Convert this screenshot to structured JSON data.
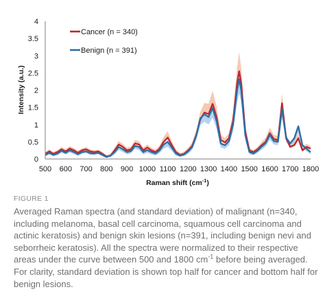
{
  "chart_data": {
    "type": "line",
    "xlabel": "Raman shift (cm",
    "xlabel_sup": "-1",
    "xlabel_tail": ")",
    "ylabel": "Intensity (a.u.)",
    "xlim": [
      500,
      1800
    ],
    "ylim": [
      0,
      4
    ],
    "xticks": [
      500,
      600,
      700,
      800,
      900,
      1000,
      1100,
      1200,
      1300,
      1400,
      1500,
      1600,
      1700,
      1800
    ],
    "yticks": [
      "0",
      "0.5",
      "1",
      "1.5",
      "2",
      "2.5",
      "3",
      "3.5",
      "4"
    ],
    "ytick_values": [
      0,
      0.5,
      1,
      1.5,
      2,
      2.5,
      3,
      3.5,
      4
    ],
    "grid": false,
    "legend_position": "top-left",
    "x": [
      500,
      520,
      540,
      560,
      580,
      600,
      620,
      640,
      660,
      680,
      700,
      720,
      740,
      760,
      780,
      800,
      820,
      840,
      860,
      880,
      900,
      920,
      940,
      960,
      980,
      1000,
      1020,
      1040,
      1060,
      1080,
      1100,
      1120,
      1140,
      1160,
      1180,
      1200,
      1220,
      1240,
      1260,
      1280,
      1300,
      1320,
      1340,
      1360,
      1380,
      1400,
      1420,
      1440,
      1450,
      1460,
      1480,
      1500,
      1520,
      1540,
      1560,
      1580,
      1600,
      1620,
      1640,
      1660,
      1680,
      1700,
      1720,
      1740,
      1760,
      1780,
      1800
    ],
    "series": [
      {
        "name": "Cancer (n = 340)",
        "color": "#c0272d",
        "band_color": "#f3c0a4",
        "band": "upper",
        "values": [
          0.15,
          0.22,
          0.15,
          0.2,
          0.28,
          0.22,
          0.3,
          0.25,
          0.18,
          0.25,
          0.28,
          0.22,
          0.2,
          0.22,
          0.15,
          0.07,
          0.1,
          0.25,
          0.42,
          0.35,
          0.25,
          0.28,
          0.45,
          0.42,
          0.25,
          0.33,
          0.25,
          0.2,
          0.3,
          0.5,
          0.62,
          0.4,
          0.2,
          0.12,
          0.15,
          0.25,
          0.38,
          0.7,
          1.15,
          1.35,
          1.3,
          1.6,
          1.2,
          0.55,
          0.48,
          0.6,
          1.1,
          2.2,
          2.55,
          2.2,
          0.8,
          0.25,
          0.2,
          0.28,
          0.4,
          0.5,
          0.75,
          0.58,
          0.55,
          1.62,
          0.6,
          0.35,
          0.4,
          0.6,
          0.25,
          0.35,
          0.3
        ],
        "sd": [
          0.05,
          0.06,
          0.05,
          0.06,
          0.07,
          0.06,
          0.07,
          0.07,
          0.06,
          0.06,
          0.06,
          0.06,
          0.05,
          0.05,
          0.05,
          0.04,
          0.05,
          0.08,
          0.1,
          0.09,
          0.08,
          0.08,
          0.1,
          0.1,
          0.08,
          0.09,
          0.08,
          0.07,
          0.09,
          0.14,
          0.18,
          0.12,
          0.07,
          0.05,
          0.06,
          0.08,
          0.1,
          0.14,
          0.22,
          0.28,
          0.3,
          0.38,
          0.3,
          0.15,
          0.12,
          0.15,
          0.25,
          0.45,
          0.55,
          0.45,
          0.18,
          0.07,
          0.06,
          0.07,
          0.1,
          0.12,
          0.16,
          0.12,
          0.12,
          0.28,
          0.12,
          0.08,
          0.1,
          0.14,
          0.07,
          0.09,
          0.08
        ]
      },
      {
        "name": "Benign (n = 391)",
        "color": "#2e6da4",
        "band_color": "#a9cbea",
        "band": "lower",
        "values": [
          0.12,
          0.18,
          0.12,
          0.16,
          0.24,
          0.18,
          0.25,
          0.2,
          0.14,
          0.2,
          0.22,
          0.17,
          0.16,
          0.18,
          0.12,
          0.06,
          0.1,
          0.2,
          0.35,
          0.28,
          0.2,
          0.23,
          0.38,
          0.35,
          0.2,
          0.26,
          0.2,
          0.16,
          0.25,
          0.42,
          0.5,
          0.33,
          0.16,
          0.1,
          0.13,
          0.22,
          0.35,
          0.68,
          1.18,
          1.3,
          1.22,
          1.48,
          1.08,
          0.45,
          0.4,
          0.52,
          1.0,
          2.0,
          2.32,
          2.0,
          0.7,
          0.2,
          0.16,
          0.24,
          0.36,
          0.46,
          0.7,
          0.52,
          0.5,
          1.45,
          0.62,
          0.45,
          0.6,
          0.95,
          0.4,
          0.3,
          0.2
        ],
        "sd": [
          0.04,
          0.05,
          0.04,
          0.05,
          0.06,
          0.05,
          0.06,
          0.06,
          0.05,
          0.05,
          0.05,
          0.05,
          0.04,
          0.04,
          0.04,
          0.03,
          0.04,
          0.07,
          0.09,
          0.08,
          0.07,
          0.07,
          0.09,
          0.09,
          0.07,
          0.08,
          0.07,
          0.06,
          0.08,
          0.12,
          0.15,
          0.1,
          0.06,
          0.04,
          0.05,
          0.07,
          0.09,
          0.13,
          0.2,
          0.22,
          0.22,
          0.28,
          0.22,
          0.12,
          0.1,
          0.12,
          0.2,
          0.35,
          0.42,
          0.35,
          0.15,
          0.06,
          0.05,
          0.06,
          0.09,
          0.1,
          0.14,
          0.1,
          0.1,
          0.24,
          0.12,
          0.08,
          0.12,
          0.18,
          0.08,
          0.08,
          0.06
        ]
      }
    ]
  },
  "caption": {
    "label": "FIGURE 1",
    "text": "Averaged Raman spectra (and standard deviation) of malignant (n=340, including melanoma, basal cell carcinoma, squamous cell carcinoma and actinic keratosis) and benign skin lesions (n=391, including benign nevi and seborrheic keratosis). All the spectra were normalized to their respective areas under the curve between 500 and 1800 cm",
    "text_sup": "-1",
    "text_tail": " before being averaged. For clarity, standard deviation is shown top half for cancer and bottom half for benign lesions."
  }
}
